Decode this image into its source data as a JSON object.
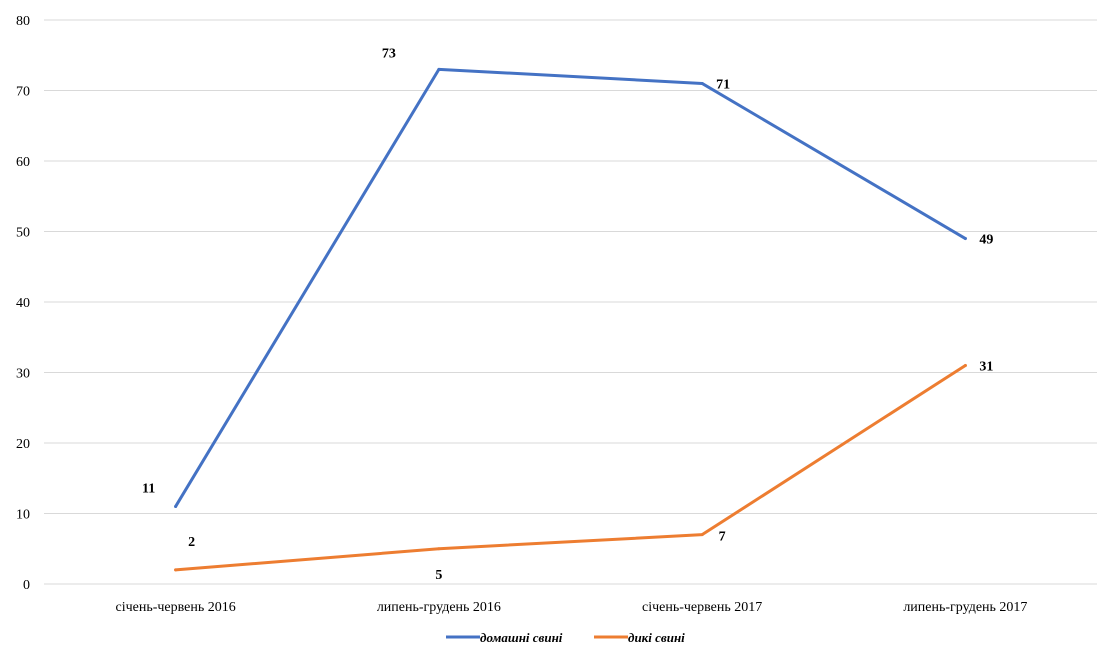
{
  "chart_data": {
    "type": "line",
    "categories": [
      "січень-червень 2016",
      "липень-грудень 2016",
      "січень-червень 2017",
      "липень-грудень 2017"
    ],
    "series": [
      {
        "name": "домашні свині",
        "values": [
          11,
          73,
          71,
          49
        ],
        "color": "#4472c4"
      },
      {
        "name": "дикі свині",
        "values": [
          2,
          5,
          7,
          31
        ],
        "color": "#ed7d31"
      }
    ],
    "ylim": [
      0,
      80
    ],
    "yticks": [
      0,
      10,
      20,
      30,
      40,
      50,
      60,
      70,
      80
    ],
    "grid": true,
    "legend_position": "bottom"
  }
}
